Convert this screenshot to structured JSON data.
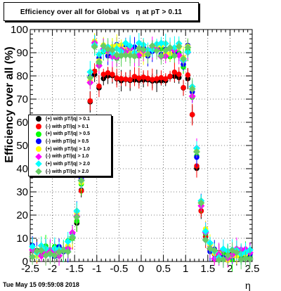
{
  "title": "Efficiency over all for Global vs   η at pT > 0.11",
  "timestamp": "Tue May 15 09:59:08 2018",
  "chart_data": {
    "type": "scatter",
    "title": "Efficiency over all for Global vs   η at pT > 0.11",
    "xlabel": "η",
    "ylabel": "Efficiency over all (%)",
    "xlim": [
      -2.5,
      2.5
    ],
    "ylim": [
      0,
      100
    ],
    "x_ticks": [
      "-2.5",
      "-2",
      "-1.5",
      "-1",
      "-0.5",
      "0",
      "0.5",
      "1",
      "1.5",
      "2",
      "2.5"
    ],
    "y_ticks": [
      "0",
      "10",
      "20",
      "30",
      "40",
      "50",
      "60",
      "70",
      "80",
      "90",
      "100"
    ],
    "grid": true,
    "legend_position": "left-middle",
    "series": [
      {
        "name": "(+) with pT/|q| > 0.1",
        "color": "#000000",
        "marker": "circle",
        "plateau": 78
      },
      {
        "name": "(-) with pT/|q| > 0.1",
        "color": "#ff0000",
        "marker": "circle",
        "plateau": 79
      },
      {
        "name": "(+) with pT/|q| > 0.5",
        "color": "#00ff00",
        "marker": "circle",
        "plateau": 90
      },
      {
        "name": "(-) with pT/|q| > 0.5",
        "color": "#0000ff",
        "marker": "circle",
        "plateau": 91
      },
      {
        "name": "(+) with pT/|q| > 1.0",
        "color": "#ffff00",
        "marker": "circle",
        "plateau": 91
      },
      {
        "name": "(-) with pT/|q| > 1.0",
        "color": "#ff00ff",
        "marker": "diamond",
        "plateau": 90
      },
      {
        "name": "(+) with pT/|q| > 2.0",
        "color": "#00ffff",
        "marker": "diamond",
        "plateau": 92
      },
      {
        "name": "(-) with pT/|q| > 2.0",
        "color": "#66cc66",
        "marker": "diamond",
        "plateau": 91
      }
    ],
    "edge_region": {
      "eta_low": 1.0,
      "eta_high": 1.5,
      "tail_level": 3
    }
  }
}
